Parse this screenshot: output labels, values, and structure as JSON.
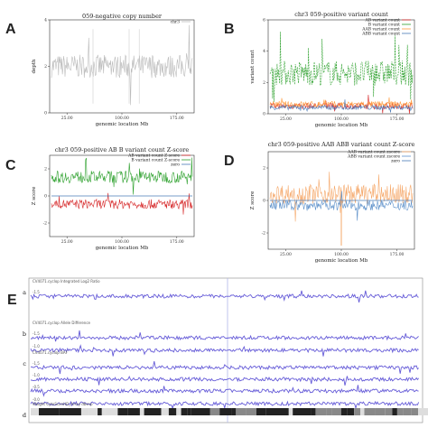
{
  "labels": {
    "A": "A",
    "B": "B",
    "C": "C",
    "D": "D",
    "E": "E"
  },
  "chart_data": [
    {
      "panel": "A",
      "type": "line",
      "title": "059-negative copy number",
      "legend": [
        "chr3"
      ],
      "xlabel": "genomic location Mb",
      "ylabel": "depth",
      "xticks": [
        "25.00",
        "100.00",
        "175.00"
      ],
      "yticks": [
        "0",
        "2",
        "4"
      ],
      "series": [
        {
          "name": "chr3",
          "color": "#bbbbbb",
          "baseline": 2,
          "noise": 0.5
        }
      ]
    },
    {
      "panel": "B",
      "type": "line",
      "title": "chr3 059-positive variant count",
      "legend": [
        "AB variant count",
        "B variant count",
        "AAB variant count",
        "ABB variant count"
      ],
      "xlabel": "genomic location Mb",
      "ylabel": "variant count",
      "xticks": [
        "25.00",
        "100.00",
        "175.00"
      ],
      "yticks": [
        "0",
        "2",
        "4",
        "6"
      ],
      "series": [
        {
          "name": "AB variant count",
          "color": "#d62728",
          "baseline": 0.5,
          "noise": 0.2
        },
        {
          "name": "B variant count",
          "color": "#2ca02c",
          "baseline": 2.6,
          "noise": 0.8
        },
        {
          "name": "AAB variant count",
          "color": "#ff9a3c",
          "baseline": 0.6,
          "noise": 0.2
        },
        {
          "name": "ABB variant count",
          "color": "#4a7bb7",
          "baseline": 0.4,
          "noise": 0.15
        }
      ]
    },
    {
      "panel": "C",
      "type": "line",
      "title": "chr3 059-positive AB B variant count Z-score",
      "legend": [
        "AB variant count Z-score",
        "B variant count Z-score",
        "zero"
      ],
      "xlabel": "genomic location Mb",
      "ylabel": "Z score",
      "xticks": [
        "25.00",
        "100.00",
        "175.00"
      ],
      "yticks": [
        "-2",
        "0",
        "2"
      ],
      "series": [
        {
          "name": "AB variant count Z-score",
          "color": "#d62728",
          "baseline": -0.6,
          "noise": 0.35
        },
        {
          "name": "B variant count Z-score",
          "color": "#2ca02c",
          "baseline": 1.4,
          "noise": 0.45
        },
        {
          "name": "zero",
          "color": "#4a7bb7",
          "baseline": 0,
          "noise": 0
        }
      ]
    },
    {
      "panel": "D",
      "type": "line",
      "title": "chr3 059-positive AAB ABB variant count Z-score",
      "legend": [
        "AAB variant count zscore",
        "ABB variant count zscore",
        "zero"
      ],
      "xlabel": "genomic location Mb",
      "ylabel": "Z score",
      "xticks": [
        "25.00",
        "100.00",
        "175.00"
      ],
      "yticks": [
        "-2",
        "0",
        "2"
      ],
      "series": [
        {
          "name": "AAB variant count zscore",
          "color": "#f5a86a",
          "baseline": 0.4,
          "noise": 0.6
        },
        {
          "name": "ABB variant count zscore",
          "color": "#5b8fc9",
          "baseline": -0.3,
          "noise": 0.3
        },
        {
          "name": "zero",
          "color": "#4a7bb7",
          "baseline": 0,
          "noise": 0
        }
      ]
    }
  ],
  "tracks": [
    {
      "label": "CV4071.cyclop Integrated Log2 Ratio",
      "letter": "a"
    },
    {
      "label": "CV4071.cyclop Allele Difference",
      "letter": "b"
    },
    {
      "label": "CV4071.cyclop BAF",
      "letter": "c"
    },
    {
      "label": "Weight CytoScanHD_Array dbsnp",
      "letter": "d"
    }
  ]
}
